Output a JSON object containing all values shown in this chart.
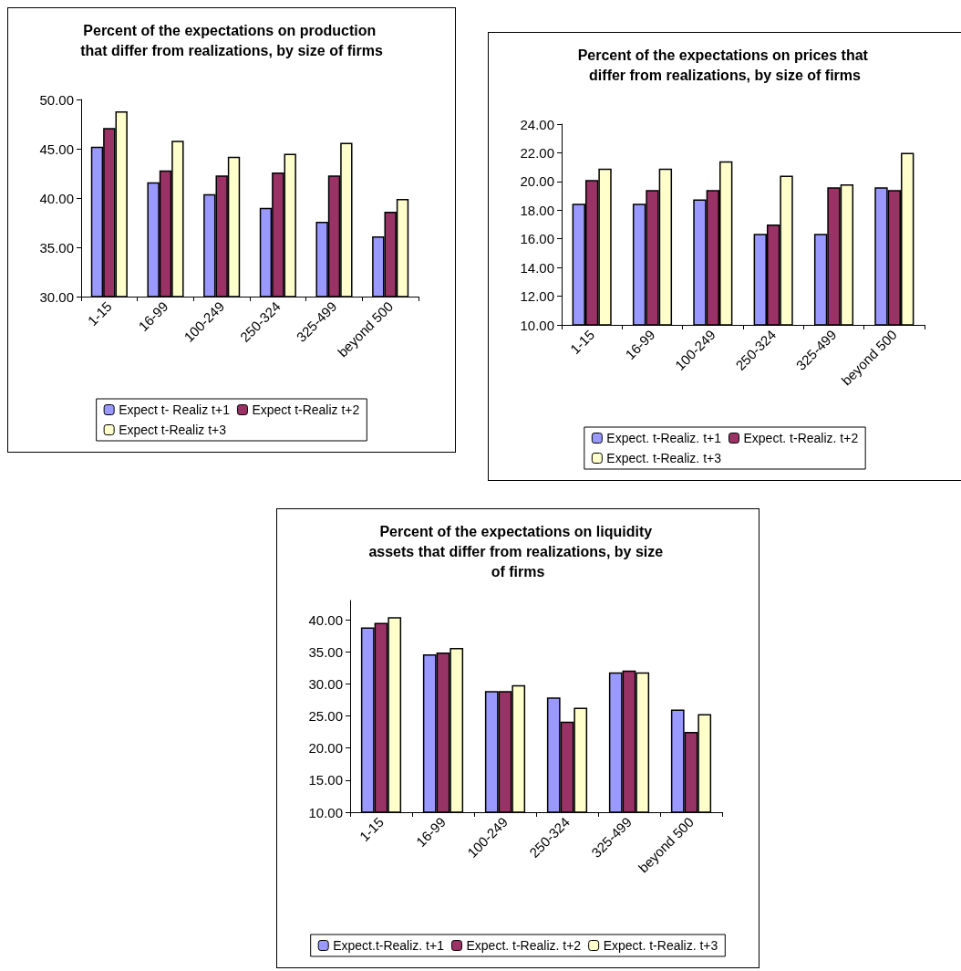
{
  "chart_data": [
    {
      "type": "bar",
      "title": "Percent of the expectations on production that differ from realizations, by size of firms",
      "categories": [
        "1-15",
        "16-99",
        "100-249",
        "250-324",
        "325-499",
        "beyond 500"
      ],
      "series": [
        {
          "name": "Expect t- Realiz t+1",
          "color": "#9999ff",
          "values": [
            45.2,
            41.6,
            40.4,
            39.0,
            37.6,
            36.1
          ]
        },
        {
          "name": "Expect t-Realiz t+2",
          "color": "#993366",
          "values": [
            47.1,
            42.8,
            42.3,
            42.6,
            42.3,
            38.6
          ]
        },
        {
          "name": "Expect t-Realiz t+3",
          "color": "#ffffcc",
          "values": [
            48.8,
            45.8,
            44.2,
            44.5,
            45.6,
            39.9
          ]
        }
      ],
      "ylim": [
        30,
        50
      ],
      "yticks": [
        {
          "value": 30,
          "label": "30.00"
        },
        {
          "value": 35,
          "label": "35.00"
        },
        {
          "value": 40,
          "label": "40.00"
        },
        {
          "value": 45,
          "label": "45.00"
        },
        {
          "value": 50,
          "label": "50.00"
        }
      ],
      "grid": false,
      "legend": "bottom"
    },
    {
      "type": "bar",
      "title": "Percent of the expectations on prices that differ from realizations, by size of firms",
      "categories": [
        "1-15",
        "16-99",
        "100-249",
        "250-324",
        "325-499",
        "beyond 500"
      ],
      "series": [
        {
          "name": "Expect. t-Realiz. t+1",
          "color": "#9999ff",
          "values": [
            18.45,
            18.45,
            18.75,
            16.35,
            16.35,
            19.6
          ]
        },
        {
          "name": "Expect. t-Realiz. t+2",
          "color": "#993366",
          "values": [
            20.1,
            19.4,
            19.4,
            17.0,
            19.6,
            19.4
          ]
        },
        {
          "name": "Expect. t-Realiz. t+3",
          "color": "#ffffcc",
          "values": [
            20.9,
            20.9,
            21.4,
            20.4,
            19.8,
            22.0
          ]
        }
      ],
      "ylim": [
        10,
        24
      ],
      "yticks": [
        {
          "value": 10,
          "label": "10.00"
        },
        {
          "value": 12,
          "label": "12.00"
        },
        {
          "value": 14,
          "label": "14.00"
        },
        {
          "value": 16,
          "label": "16.00"
        },
        {
          "value": 18,
          "label": "18.00"
        },
        {
          "value": 20,
          "label": "20.00"
        },
        {
          "value": 22,
          "label": "22.00"
        },
        {
          "value": 24,
          "label": "24.00"
        }
      ],
      "grid": false,
      "legend": "bottom"
    },
    {
      "type": "bar",
      "title": "Percent of the expectations on liquidity assets that differ from realizations, by size of firms",
      "categories": [
        "1-15",
        "16-99",
        "100-249",
        "250-324",
        "325-499",
        "beyond 500"
      ],
      "series": [
        {
          "name": "Expect.t-Realiz. t+1",
          "color": "#9999ff",
          "values": [
            38.8,
            34.6,
            28.9,
            27.9,
            31.8,
            26.0
          ]
        },
        {
          "name": "Expect. t-Realiz. t+2",
          "color": "#993366",
          "values": [
            39.5,
            34.9,
            28.9,
            24.1,
            32.1,
            22.5
          ]
        },
        {
          "name": "Expect. t-Realiz. t+3",
          "color": "#ffffcc",
          "values": [
            40.4,
            35.6,
            29.8,
            26.3,
            31.8,
            25.3
          ]
        }
      ],
      "ylim": [
        10,
        43
      ],
      "yticks": [
        {
          "value": 10,
          "label": "10.00"
        },
        {
          "value": 15,
          "label": "15.00"
        },
        {
          "value": 20,
          "label": "20.00"
        },
        {
          "value": 25,
          "label": "25.00"
        },
        {
          "value": 30,
          "label": "30.00"
        },
        {
          "value": 35,
          "label": "35.00"
        },
        {
          "value": 40,
          "label": "40.00"
        }
      ],
      "grid": false,
      "legend": "bottom"
    }
  ]
}
